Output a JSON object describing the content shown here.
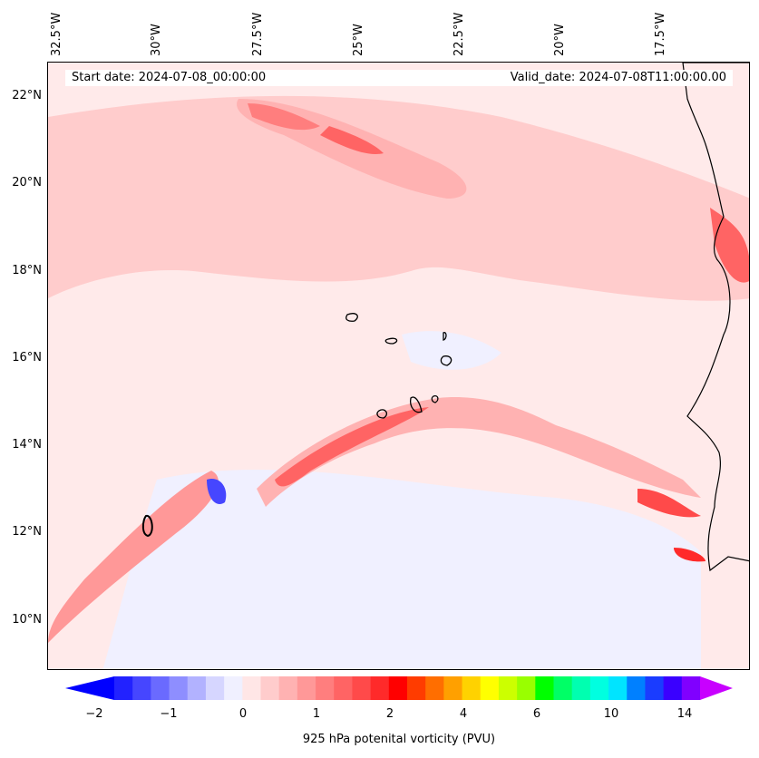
{
  "map": {
    "start_date": "Start date: 2024-07-08_00:00:00",
    "valid_date": "Valid_date: 2024-07-08T11:00:00.00",
    "lon_labels": [
      "32.5°W",
      "30°W",
      "27.5°W",
      "25°W",
      "22.5°W",
      "20°W",
      "17.5°W"
    ],
    "lat_labels": [
      "22°N",
      "20°N",
      "18°N",
      "16°N",
      "14°N",
      "12°N",
      "10°N"
    ]
  },
  "colorbar": {
    "label": "925 hPa potenital vorticity (PVU)",
    "ticks": [
      "−2",
      "−1",
      "0",
      "1",
      "2",
      "4",
      "6",
      "10",
      "14"
    ],
    "colors": [
      "#0000ff",
      "#2222ff",
      "#4646ff",
      "#6a6aff",
      "#8e8eff",
      "#b2b2ff",
      "#d6d6ff",
      "#f0f0ff",
      "#ffe6e6",
      "#ffcccc",
      "#ffb2b2",
      "#ff9898",
      "#ff7e7e",
      "#ff6464",
      "#ff4a4a",
      "#ff2a2a",
      "#ff0000",
      "#ff3c00",
      "#ff6e00",
      "#ffa000",
      "#ffd200",
      "#ffff00",
      "#ccff00",
      "#99ff00",
      "#00ff00",
      "#00ff66",
      "#00ffb0",
      "#00ffe0",
      "#00e4ff",
      "#0080ff",
      "#1a3cff",
      "#3a00ff",
      "#8000ff",
      "#c800ff"
    ]
  }
}
